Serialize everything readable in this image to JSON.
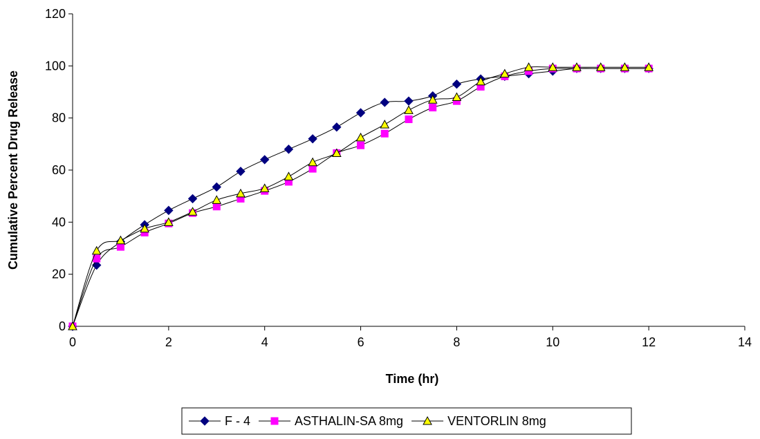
{
  "chart_data": {
    "type": "line",
    "title": "",
    "xlabel": "Time (hr)",
    "ylabel": "Cumulative Percent Drug Release",
    "xlim": [
      0,
      14
    ],
    "ylim": [
      0,
      120
    ],
    "x_ticks": [
      0,
      2,
      4,
      6,
      8,
      10,
      12,
      14
    ],
    "y_ticks": [
      0,
      20,
      40,
      60,
      80,
      100,
      120
    ],
    "grid": false,
    "legend_position": "bottom",
    "x": [
      0,
      0.5,
      1,
      1.5,
      2,
      2.5,
      3,
      3.5,
      4,
      4.5,
      5,
      5.5,
      6,
      6.5,
      7,
      7.5,
      8,
      8.5,
      9,
      9.5,
      10,
      10.5,
      11,
      11.5,
      12
    ],
    "series": [
      {
        "name": "F - 4",
        "marker": "diamond",
        "color": "#000080",
        "values": [
          0,
          23.5,
          32.5,
          39,
          44.5,
          49,
          53.5,
          59.5,
          64,
          68,
          72,
          76.5,
          82,
          86,
          86.5,
          88.5,
          93,
          95,
          96,
          97,
          98,
          99,
          99,
          99,
          99
        ]
      },
      {
        "name": "ASTHALIN-SA 8mg",
        "marker": "square",
        "color": "#FF00FF",
        "values": [
          0,
          26,
          30.5,
          36,
          39.5,
          43.5,
          46,
          49,
          52,
          55.5,
          60.5,
          66.5,
          69.5,
          74,
          79.5,
          84,
          86.5,
          92,
          96,
          98,
          99,
          99,
          99,
          99,
          99
        ]
      },
      {
        "name": "VENTORLIN 8mg",
        "marker": "triangle",
        "color": "#FFFF00",
        "values": [
          0,
          29,
          33,
          37.5,
          40,
          44,
          48.5,
          51,
          53,
          57.5,
          63,
          66.5,
          72.5,
          77.5,
          83,
          87,
          88,
          94,
          97,
          99.5,
          99.5,
          99.5,
          99.5,
          99.5,
          99.5
        ]
      }
    ]
  }
}
